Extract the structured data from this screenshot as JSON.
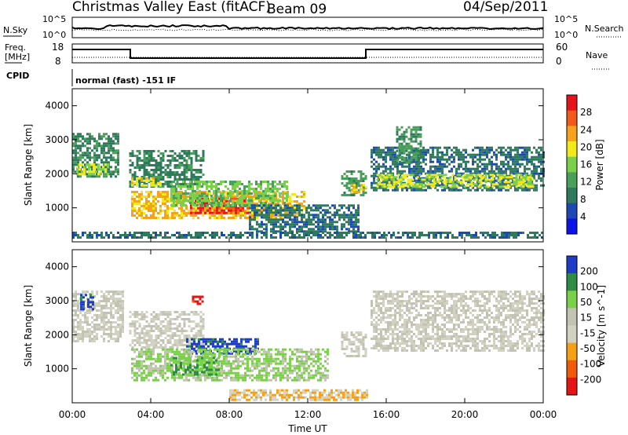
{
  "header": {
    "station": "Christmas Valley East (fitACF)",
    "beam": "Beam 09",
    "date": "04/Sep/2011"
  },
  "top_strip": {
    "nsky_label": "N.Sky",
    "nsky_ticks": [
      "10^5",
      "10^0"
    ],
    "nsearch_label": "N.Search",
    "nsearch_ticks": [
      "10^5",
      "10^0"
    ],
    "freq_label": "Freq.",
    "freq_unit": "[MHz]",
    "freq_ticks": [
      "18",
      "8"
    ],
    "nave_label": "Nave",
    "nave_ticks": [
      "60",
      "0"
    ],
    "cpid_label": "CPID",
    "cpid_text": "normal (fast) -151 IF"
  },
  "colors": {
    "power_scale": [
      "#0a14e6",
      "#1c49b4",
      "#2d7a5c",
      "#4aa05a",
      "#7bd04a",
      "#f2e81a",
      "#f6a21c",
      "#f35a1a",
      "#e6141a"
    ],
    "velocity_scale": [
      "#e61414",
      "#f05a0a",
      "#f5a014",
      "#d2d2c3",
      "#c3c3b4",
      "#7bd04a",
      "#2d8c46",
      "#1e3cc8"
    ]
  },
  "chart_data": [
    {
      "type": "heatmap",
      "panel": "power",
      "ylabel": "Slant Range [km]",
      "xlabel": "",
      "x_range_hours": [
        0,
        24
      ],
      "ylim": [
        0,
        4500
      ],
      "yticks": [
        "1000",
        "2000",
        "3000",
        "4000"
      ],
      "colorbar": {
        "label": "Power [dB]",
        "range": [
          0,
          32
        ],
        "ticks": [
          "4",
          "8",
          "12",
          "16",
          "20",
          "24",
          "28"
        ]
      },
      "regions": [
        {
          "t": [
            0.0,
            2.4
          ],
          "r": [
            1900,
            3200
          ],
          "value": 10
        },
        {
          "t": [
            0.2,
            1.8
          ],
          "r": [
            2000,
            2300
          ],
          "value": 18
        },
        {
          "t": [
            2.9,
            6.7
          ],
          "r": [
            1600,
            2700
          ],
          "value": 10
        },
        {
          "t": [
            3.0,
            4.5
          ],
          "r": [
            1650,
            1900
          ],
          "value": 20
        },
        {
          "t": [
            3.0,
            11.8
          ],
          "r": [
            700,
            1500
          ],
          "value": 22
        },
        {
          "t": [
            6.0,
            9.0
          ],
          "r": [
            850,
            1300
          ],
          "value": 29
        },
        {
          "t": [
            5.0,
            11.0
          ],
          "r": [
            1100,
            1800
          ],
          "value": 15
        },
        {
          "t": [
            9.0,
            14.6
          ],
          "r": [
            300,
            1100
          ],
          "value": 8
        },
        {
          "t": [
            13.7,
            15.0
          ],
          "r": [
            1400,
            2100
          ],
          "value": 12
        },
        {
          "t": [
            14.2,
            15.0
          ],
          "r": [
            1450,
            1700
          ],
          "value": 22
        },
        {
          "t": [
            15.2,
            24.0
          ],
          "r": [
            1500,
            2800
          ],
          "value": 8
        },
        {
          "t": [
            16.5,
            17.8
          ],
          "r": [
            2300,
            3400
          ],
          "value": 11
        },
        {
          "t": [
            15.5,
            23.5
          ],
          "r": [
            1650,
            2000
          ],
          "value": 18
        },
        {
          "t": [
            0.0,
            24.0
          ],
          "r": [
            100,
            300
          ],
          "value": 8
        }
      ]
    },
    {
      "type": "heatmap",
      "panel": "velocity",
      "ylabel": "Slant Range [km]",
      "xlabel": "Time UT",
      "x_range_hours": [
        0,
        24
      ],
      "xticks": [
        "00:00",
        "04:00",
        "08:00",
        "12:00",
        "16:00",
        "20:00",
        "00:00"
      ],
      "ylim": [
        0,
        4500
      ],
      "yticks": [
        "1000",
        "2000",
        "3000",
        "4000"
      ],
      "colorbar": {
        "label": "Velocity [m s^-1]",
        "range": [
          -250,
          250
        ],
        "ticks": [
          "200",
          "100",
          "50",
          "15",
          "-15",
          "-50",
          "-100",
          "-200"
        ]
      },
      "regions": [
        {
          "t": [
            0.0,
            2.6
          ],
          "r": [
            1800,
            3300
          ],
          "value": 0
        },
        {
          "t": [
            0.4,
            1.1
          ],
          "r": [
            2750,
            3200
          ],
          "value": 210
        },
        {
          "t": [
            2.9,
            6.7
          ],
          "r": [
            1600,
            2700
          ],
          "value": 0
        },
        {
          "t": [
            6.1,
            6.6
          ],
          "r": [
            2900,
            3150
          ],
          "value": -210
        },
        {
          "t": [
            5.8,
            9.5
          ],
          "r": [
            1450,
            1900
          ],
          "value": 210
        },
        {
          "t": [
            3.0,
            13.0
          ],
          "r": [
            700,
            1600
          ],
          "value": 70
        },
        {
          "t": [
            5.0,
            7.5
          ],
          "r": [
            800,
            1350
          ],
          "value": 120
        },
        {
          "t": [
            13.7,
            15.0
          ],
          "r": [
            1400,
            2100
          ],
          "value": 0
        },
        {
          "t": [
            15.2,
            24.0
          ],
          "r": [
            1500,
            3300
          ],
          "value": 0
        },
        {
          "t": [
            8.0,
            15.0
          ],
          "r": [
            100,
            400
          ],
          "value": -60
        }
      ]
    }
  ]
}
